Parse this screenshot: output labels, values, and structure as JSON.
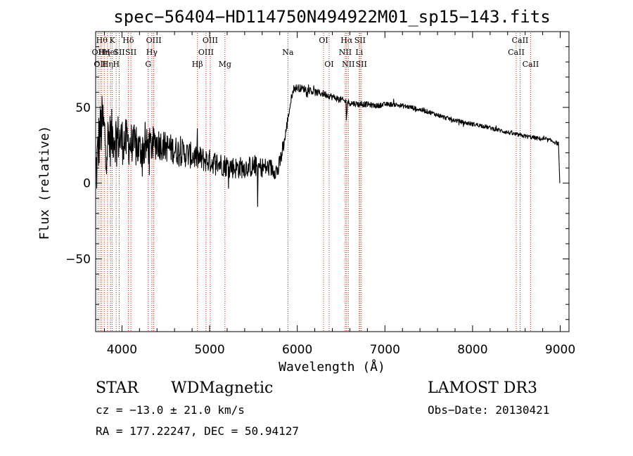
{
  "chart_data": {
    "type": "line",
    "title": "spec−56404−HD114750N494922M01_sp15−143.fits",
    "xlabel": "Wavelength (Å)",
    "ylabel": "Flux (relative)",
    "xlim": [
      3700,
      9100
    ],
    "ylim": [
      -98,
      100
    ],
    "xticks": [
      4000,
      5000,
      6000,
      7000,
      8000,
      9000
    ],
    "yticks": [
      -50,
      0,
      50
    ],
    "ytick_labels": [
      "−50",
      "0",
      "50"
    ],
    "series": [
      {
        "name": "spectrum",
        "color": "#000000",
        "anchors": [
          [
            3700,
            5
          ],
          [
            3720,
            15
          ],
          [
            3740,
            30
          ],
          [
            3780,
            40
          ],
          [
            3820,
            25
          ],
          [
            3900,
            32
          ],
          [
            4000,
            28
          ],
          [
            4100,
            26
          ],
          [
            4200,
            22
          ],
          [
            4300,
            24
          ],
          [
            4400,
            27
          ],
          [
            4500,
            24
          ],
          [
            4700,
            20
          ],
          [
            4900,
            16
          ],
          [
            5100,
            13
          ],
          [
            5300,
            10
          ],
          [
            5500,
            11
          ],
          [
            5700,
            10
          ],
          [
            5780,
            8
          ],
          [
            5820,
            18
          ],
          [
            5860,
            30
          ],
          [
            5900,
            45
          ],
          [
            5950,
            62
          ],
          [
            6000,
            63
          ],
          [
            6100,
            62
          ],
          [
            6200,
            60
          ],
          [
            6300,
            59
          ],
          [
            6400,
            57
          ],
          [
            6500,
            55
          ],
          [
            6600,
            53
          ],
          [
            6700,
            52
          ],
          [
            6800,
            52
          ],
          [
            6900,
            51
          ],
          [
            7000,
            52
          ],
          [
            7100,
            52
          ],
          [
            7200,
            51
          ],
          [
            7300,
            50
          ],
          [
            7500,
            47
          ],
          [
            7700,
            43
          ],
          [
            7900,
            40
          ],
          [
            8100,
            38
          ],
          [
            8300,
            35
          ],
          [
            8500,
            32
          ],
          [
            8700,
            30
          ],
          [
            8900,
            28
          ],
          [
            8980,
            26
          ],
          [
            8995,
            0
          ]
        ],
        "noise": [
          [
            3700,
            22
          ],
          [
            4000,
            16
          ],
          [
            4500,
            10
          ],
          [
            5000,
            8
          ],
          [
            5500,
            7
          ],
          [
            5800,
            6
          ],
          [
            5900,
            3
          ],
          [
            6000,
            2.5
          ],
          [
            6500,
            2.2
          ],
          [
            7000,
            1.6
          ],
          [
            8000,
            1.4
          ],
          [
            9000,
            1.4
          ]
        ],
        "dips": [
          {
            "wl": 5550,
            "depth": 15
          },
          {
            "wl": 6563,
            "depth": 8
          }
        ]
      }
    ],
    "lines": [
      {
        "wl": 3727,
        "label": "OII",
        "row": 1
      },
      {
        "wl": 3750,
        "label": "OII",
        "row": 2
      },
      {
        "wl": 3770,
        "label": "Hθ",
        "row": 0
      },
      {
        "wl": 3798,
        "label": "Hη",
        "row": 1
      },
      {
        "wl": 3835,
        "label": "Hη",
        "row": 2
      },
      {
        "wl": 3870,
        "label": "HeI",
        "row": 1
      },
      {
        "wl": 3889,
        "label": "K",
        "row": 0
      },
      {
        "wl": 3934,
        "label": "H",
        "row": 2
      },
      {
        "wl": 3969,
        "label": "SII",
        "row": 1
      },
      {
        "wl": 4072,
        "label": "Hδ",
        "row": 0
      },
      {
        "wl": 4102,
        "label": "SII",
        "row": 1
      },
      {
        "wl": 4300,
        "label": "G",
        "row": 2
      },
      {
        "wl": 4341,
        "label": "Hγ",
        "row": 1
      },
      {
        "wl": 4363,
        "label": "OIII",
        "row": 0
      },
      {
        "wl": 4861,
        "label": "Hβ",
        "row": 2
      },
      {
        "wl": 4959,
        "label": "OIII",
        "row": 1
      },
      {
        "wl": 5007,
        "label": "OIII",
        "row": 0
      },
      {
        "wl": 5175,
        "label": "Mg",
        "row": 2
      },
      {
        "wl": 5893,
        "label": "Na",
        "row": 1
      },
      {
        "wl": 6300,
        "label": "OI",
        "row": 0
      },
      {
        "wl": 6363,
        "label": "OI",
        "row": 2
      },
      {
        "wl": 6548,
        "label": "NII",
        "row": 1
      },
      {
        "wl": 6563,
        "label": "Hα",
        "row": 0
      },
      {
        "wl": 6583,
        "label": "NII",
        "row": 2
      },
      {
        "wl": 6707,
        "label": "Li",
        "row": 1
      },
      {
        "wl": 6716,
        "label": "SII",
        "row": 0
      },
      {
        "wl": 6731,
        "label": "SII",
        "row": 2
      },
      {
        "wl": 8498,
        "label": "CaII",
        "row": 1
      },
      {
        "wl": 8542,
        "label": "CaII",
        "row": 0
      },
      {
        "wl": 8662,
        "label": "CaII",
        "row": 2
      }
    ],
    "line_color": "#cc2200"
  },
  "info": {
    "class": "STAR",
    "subclass": "WDMagnetic",
    "survey": "LAMOST DR3",
    "cz": "cz = −13.0 ± 21.0 km/s",
    "obs_date": "Obs−Date: 20130421",
    "radec": "RA = 177.22247, DEC =  50.94127"
  }
}
